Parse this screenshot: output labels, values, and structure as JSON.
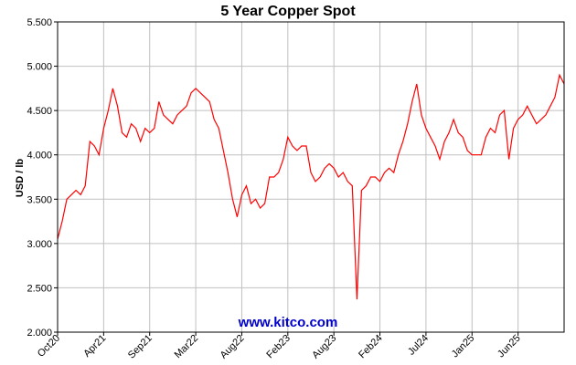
{
  "chart_data": {
    "type": "line",
    "title": "5 Year Copper Spot",
    "y_label": "USD / lb",
    "watermark": "www.kitco.com",
    "categories": [
      "Oct20",
      null,
      null,
      null,
      null,
      null,
      null,
      null,
      null,
      null,
      "Apr21",
      null,
      null,
      null,
      null,
      null,
      null,
      null,
      null,
      null,
      "Sep21",
      null,
      null,
      null,
      null,
      null,
      null,
      null,
      null,
      null,
      "Mar22",
      null,
      null,
      null,
      null,
      null,
      null,
      null,
      null,
      null,
      "Aug22",
      null,
      null,
      null,
      null,
      null,
      null,
      null,
      null,
      null,
      "Feb23",
      null,
      null,
      null,
      null,
      null,
      null,
      null,
      null,
      null,
      "Aug23",
      null,
      null,
      null,
      null,
      null,
      null,
      null,
      null,
      null,
      "Feb24",
      null,
      null,
      null,
      null,
      null,
      null,
      null,
      null,
      null,
      "Jul24",
      null,
      null,
      null,
      null,
      null,
      null,
      null,
      null,
      null,
      "Jan25",
      null,
      null,
      null,
      null,
      null,
      null,
      null,
      null,
      null,
      "Jun25",
      null,
      null,
      null,
      null,
      null,
      null,
      null,
      null,
      null,
      null
    ],
    "series": [
      {
        "color": "#ff0000",
        "values": [
          3.05,
          3.25,
          3.5,
          3.55,
          3.6,
          3.55,
          3.65,
          4.15,
          4.1,
          4.0,
          4.3,
          4.5,
          4.75,
          4.55,
          4.25,
          4.2,
          4.35,
          4.3,
          4.15,
          4.3,
          4.25,
          4.3,
          4.6,
          4.45,
          4.4,
          4.35,
          4.45,
          4.5,
          4.55,
          4.7,
          4.75,
          4.7,
          4.65,
          4.6,
          4.4,
          4.3,
          4.05,
          3.8,
          3.5,
          3.3,
          3.55,
          3.65,
          3.45,
          3.5,
          3.4,
          3.45,
          3.75,
          3.75,
          3.8,
          3.95,
          4.2,
          4.1,
          4.05,
          4.1,
          4.1,
          3.8,
          3.7,
          3.75,
          3.85,
          3.9,
          3.85,
          3.75,
          3.8,
          3.7,
          3.65,
          2.37,
          3.6,
          3.65,
          3.75,
          3.75,
          3.7,
          3.8,
          3.85,
          3.8,
          4.0,
          4.15,
          4.35,
          4.6,
          4.8,
          4.45,
          4.3,
          4.2,
          4.1,
          3.95,
          4.15,
          4.25,
          4.4,
          4.25,
          4.2,
          4.05,
          4.0,
          4.0,
          4.0,
          4.2,
          4.3,
          4.25,
          4.45,
          4.5,
          3.95,
          4.3,
          4.4,
          4.45,
          4.55,
          4.45,
          4.35,
          4.4,
          4.45,
          4.55,
          4.65,
          4.9,
          4.8
        ]
      }
    ],
    "ylim": [
      2.0,
      5.5
    ],
    "yticks": [
      {
        "value": 2.0,
        "label": "2.000"
      },
      {
        "value": 2.5,
        "label": "2.500"
      },
      {
        "value": 3.0,
        "label": "3.000"
      },
      {
        "value": 3.5,
        "label": "3.500"
      },
      {
        "value": 4.0,
        "label": "4.000"
      },
      {
        "value": 4.5,
        "label": "4.500"
      },
      {
        "value": 5.0,
        "label": "5.000"
      },
      {
        "value": 5.5,
        "label": "5.500"
      }
    ],
    "grid": true
  }
}
